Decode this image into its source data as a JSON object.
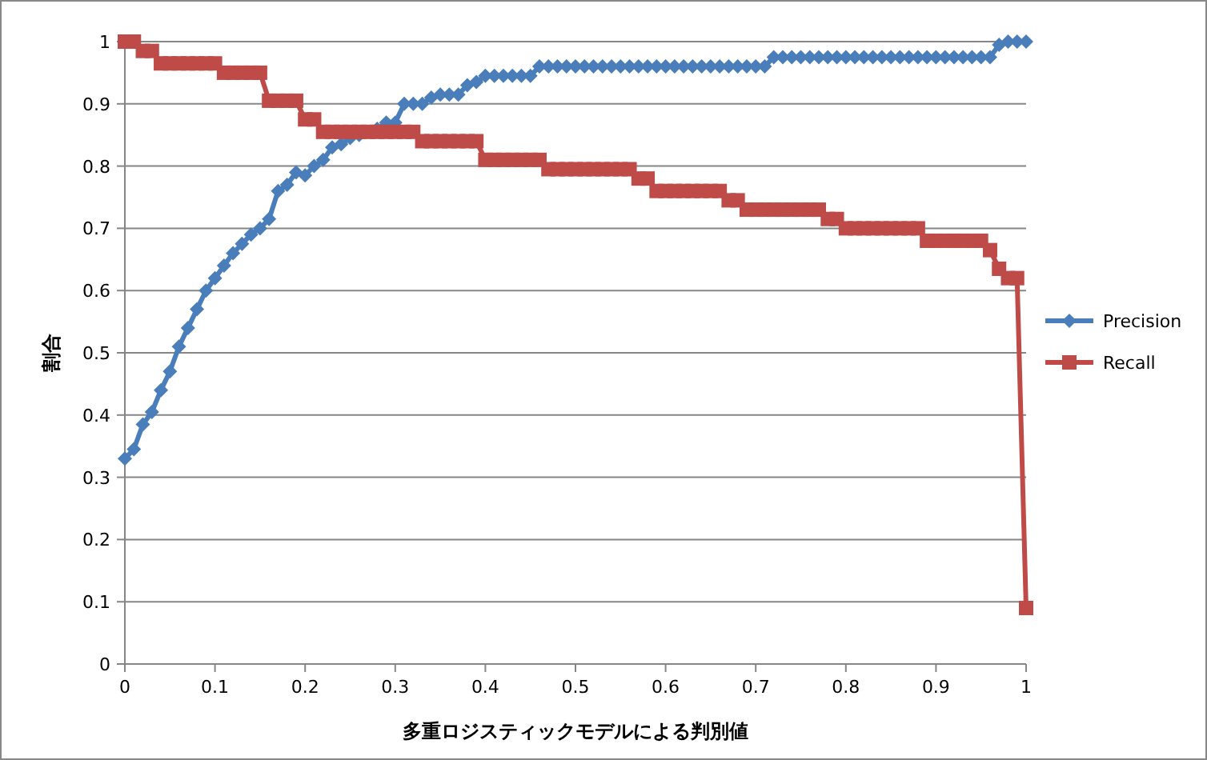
{
  "chart_data": {
    "type": "line",
    "xlabel": "多重ロジスティックモデルによる判別値",
    "ylabel": "割合",
    "x": [
      0,
      0.01,
      0.02,
      0.03,
      0.04,
      0.05,
      0.06,
      0.07,
      0.08,
      0.09,
      0.1,
      0.11,
      0.12,
      0.13,
      0.14,
      0.15,
      0.16,
      0.17,
      0.18,
      0.19,
      0.2,
      0.21,
      0.22,
      0.23,
      0.24,
      0.25,
      0.26,
      0.27,
      0.28,
      0.29,
      0.3,
      0.31,
      0.32,
      0.33,
      0.34,
      0.35,
      0.36,
      0.37,
      0.38,
      0.39,
      0.4,
      0.41,
      0.42,
      0.43,
      0.44,
      0.45,
      0.46,
      0.47,
      0.48,
      0.49,
      0.5,
      0.51,
      0.52,
      0.53,
      0.54,
      0.55,
      0.56,
      0.57,
      0.58,
      0.59,
      0.6,
      0.61,
      0.62,
      0.63,
      0.64,
      0.65,
      0.66,
      0.67,
      0.68,
      0.69,
      0.7,
      0.71,
      0.72,
      0.73,
      0.74,
      0.75,
      0.76,
      0.77,
      0.78,
      0.79,
      0.8,
      0.81,
      0.82,
      0.83,
      0.84,
      0.85,
      0.86,
      0.87,
      0.88,
      0.89,
      0.9,
      0.91,
      0.92,
      0.93,
      0.94,
      0.95,
      0.96,
      0.97,
      0.98,
      0.99,
      1
    ],
    "series": [
      {
        "name": "Precision",
        "color": "#4a7ebb",
        "marker": "diamond",
        "values": [
          0.33,
          0.345,
          0.385,
          0.405,
          0.44,
          0.47,
          0.51,
          0.54,
          0.57,
          0.6,
          0.62,
          0.64,
          0.66,
          0.675,
          0.69,
          0.7,
          0.715,
          0.76,
          0.77,
          0.79,
          0.785,
          0.8,
          0.81,
          0.83,
          0.835,
          0.845,
          0.85,
          0.855,
          0.86,
          0.87,
          0.87,
          0.9,
          0.9,
          0.9,
          0.91,
          0.915,
          0.915,
          0.915,
          0.93,
          0.935,
          0.945,
          0.945,
          0.945,
          0.945,
          0.945,
          0.945,
          0.96,
          0.96,
          0.96,
          0.96,
          0.96,
          0.96,
          0.96,
          0.96,
          0.96,
          0.96,
          0.96,
          0.96,
          0.96,
          0.96,
          0.96,
          0.96,
          0.96,
          0.96,
          0.96,
          0.96,
          0.96,
          0.96,
          0.96,
          0.96,
          0.96,
          0.96,
          0.975,
          0.975,
          0.975,
          0.975,
          0.975,
          0.975,
          0.975,
          0.975,
          0.975,
          0.975,
          0.975,
          0.975,
          0.975,
          0.975,
          0.975,
          0.975,
          0.975,
          0.975,
          0.975,
          0.975,
          0.975,
          0.975,
          0.975,
          0.975,
          0.975,
          0.995,
          1,
          1,
          1
        ]
      },
      {
        "name": "Recall",
        "color": "#be4b48",
        "marker": "square",
        "values": [
          1,
          1,
          0.985,
          0.985,
          0.965,
          0.965,
          0.965,
          0.965,
          0.965,
          0.965,
          0.965,
          0.95,
          0.95,
          0.95,
          0.95,
          0.95,
          0.905,
          0.905,
          0.905,
          0.905,
          0.875,
          0.875,
          0.855,
          0.855,
          0.855,
          0.855,
          0.855,
          0.855,
          0.855,
          0.855,
          0.855,
          0.855,
          0.855,
          0.84,
          0.84,
          0.84,
          0.84,
          0.84,
          0.84,
          0.84,
          0.81,
          0.81,
          0.81,
          0.81,
          0.81,
          0.81,
          0.81,
          0.795,
          0.795,
          0.795,
          0.795,
          0.795,
          0.795,
          0.795,
          0.795,
          0.795,
          0.795,
          0.78,
          0.78,
          0.76,
          0.76,
          0.76,
          0.76,
          0.76,
          0.76,
          0.76,
          0.76,
          0.745,
          0.745,
          0.73,
          0.73,
          0.73,
          0.73,
          0.73,
          0.73,
          0.73,
          0.73,
          0.73,
          0.715,
          0.715,
          0.7,
          0.7,
          0.7,
          0.7,
          0.7,
          0.7,
          0.7,
          0.7,
          0.7,
          0.68,
          0.68,
          0.68,
          0.68,
          0.68,
          0.68,
          0.68,
          0.665,
          0.635,
          0.62,
          0.62,
          0.09
        ]
      }
    ],
    "xlim": [
      0,
      1
    ],
    "xticks": [
      0,
      0.1,
      0.2,
      0.3,
      0.4,
      0.5,
      0.6,
      0.7,
      0.8,
      0.9,
      1
    ],
    "ylim": [
      0,
      1
    ],
    "yticks": [
      0,
      0.1,
      0.2,
      0.3,
      0.4,
      0.5,
      0.6,
      0.7,
      0.8,
      0.9,
      1
    ],
    "grid": "y",
    "legend": "right",
    "line_style": "solid"
  }
}
